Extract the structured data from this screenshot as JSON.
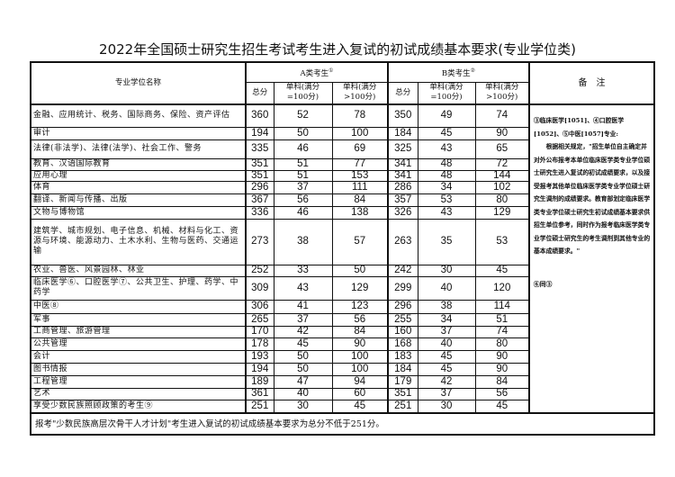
{
  "title": "2022年全国硕士研究生招生考试考生进入复试的初试成绩基本要求(专业学位类)",
  "header": {
    "name": "专业学位名称",
    "groupA": "A类考生",
    "groupA_note": "①",
    "groupB": "B类考生",
    "groupB_note": "②",
    "total": "总分",
    "single100": "单科(满分=100分)",
    "singleOver": "单科(满分>100分)",
    "remarks": "备　注"
  },
  "rows": [
    {
      "name": "金融、应用统计、税务、国际商务、保险、资产评估",
      "a": [
        "360",
        "52",
        "78"
      ],
      "b": [
        "350",
        "49",
        "74"
      ]
    },
    {
      "name": "审计",
      "a": [
        "194",
        "50",
        "100"
      ],
      "b": [
        "184",
        "45",
        "90"
      ]
    },
    {
      "name": "法律(非法学)、法律(法学)、社会工作、警务",
      "a": [
        "335",
        "46",
        "69"
      ],
      "b": [
        "325",
        "43",
        "65"
      ]
    },
    {
      "name": "教育、汉语国际教育",
      "a": [
        "351",
        "51",
        "77"
      ],
      "b": [
        "341",
        "48",
        "72"
      ]
    },
    {
      "name": "应用心理",
      "a": [
        "351",
        "51",
        "153"
      ],
      "b": [
        "341",
        "48",
        "144"
      ]
    },
    {
      "name": "体育",
      "a": [
        "296",
        "37",
        "111"
      ],
      "b": [
        "286",
        "34",
        "102"
      ]
    },
    {
      "name": "翻译、新闻与传播、出版",
      "a": [
        "367",
        "56",
        "84"
      ],
      "b": [
        "357",
        "53",
        "80"
      ]
    },
    {
      "name": "文物与博物馆",
      "a": [
        "336",
        "46",
        "138"
      ],
      "b": [
        "326",
        "43",
        "129"
      ]
    },
    {
      "name": "建筑学、城市规划、电子信息、机械、材料与化工、资源与环境、能源动力、土木水利、生物与医药、交通运输",
      "a": [
        "273",
        "38",
        "57"
      ],
      "b": [
        "263",
        "35",
        "53"
      ]
    },
    {
      "name": "农业、兽医、风景园林、林业",
      "a": [
        "252",
        "33",
        "50"
      ],
      "b": [
        "242",
        "30",
        "45"
      ]
    },
    {
      "name": "临床医学⑥、口腔医学⑦、公共卫生、护理、药学、中药学",
      "a": [
        "309",
        "43",
        "129"
      ],
      "b": [
        "299",
        "40",
        "120"
      ]
    },
    {
      "name": "中医⑧",
      "a": [
        "306",
        "41",
        "123"
      ],
      "b": [
        "296",
        "38",
        "114"
      ]
    },
    {
      "name": "军事",
      "a": [
        "265",
        "37",
        "56"
      ],
      "b": [
        "255",
        "34",
        "51"
      ]
    },
    {
      "name": "工商管理、旅游管理",
      "a": [
        "170",
        "42",
        "84"
      ],
      "b": [
        "160",
        "37",
        "74"
      ]
    },
    {
      "name": "公共管理",
      "a": [
        "178",
        "45",
        "90"
      ],
      "b": [
        "168",
        "40",
        "80"
      ]
    },
    {
      "name": "会计",
      "a": [
        "193",
        "50",
        "100"
      ],
      "b": [
        "183",
        "45",
        "90"
      ]
    },
    {
      "name": "图书情报",
      "a": [
        "194",
        "50",
        "100"
      ],
      "b": [
        "184",
        "45",
        "90"
      ]
    },
    {
      "name": "工程管理",
      "a": [
        "189",
        "47",
        "94"
      ],
      "b": [
        "179",
        "42",
        "84"
      ]
    },
    {
      "name": "艺术",
      "a": [
        "361",
        "40",
        "60"
      ],
      "b": [
        "351",
        "37",
        "56"
      ]
    },
    {
      "name": "享受少数民族照顾政策的考生⑨",
      "a": [
        "251",
        "30",
        "45"
      ],
      "b": [
        "251",
        "30",
        "45"
      ]
    }
  ],
  "remarks": {
    "line1": "③临床医学[1051]、④口腔医学[1052]、⑤中医[1057]专业:",
    "body": "　　根据相关规定，\"招生单位自主确定并对外公布报考本单位临床医学类专业学位硕士研究生进入复试的初试成绩要求，以及接受报考其他单位临床医学类专业学位硕士研究生调剂的成绩要求。教育部划定临床医学类专业学位硕士研究生初试成绩基本要求供招生单位参考，同时作为报考临床医学类专业学位硕士研究生的考生调剂到其他专业的基本成绩要求。\"",
    "line2": "⑥同③"
  },
  "footer": "报考\"少数民族高层次骨干人才计划\"考生进入复试的初试成绩基本要求为总分不低于251分。"
}
